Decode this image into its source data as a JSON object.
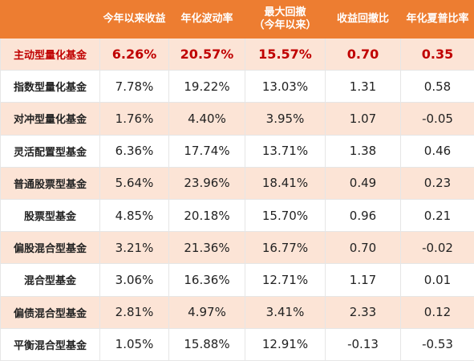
{
  "header": {
    "corner": "",
    "col1": "今年以来收益",
    "col2": "年化波动率",
    "col3_line1": "最大回撤",
    "col3_line2": "（今年以来）",
    "col4": "收益回撤比",
    "col5": "年化夏普比率"
  },
  "rows": [
    {
      "name": "主动型量化基金",
      "v1": "6.26%",
      "v2": "20.57%",
      "v3": "15.57%",
      "v4": "0.70",
      "v5": "0.35"
    },
    {
      "name": "指数型量化基金",
      "v1": "7.78%",
      "v2": "19.22%",
      "v3": "13.03%",
      "v4": "1.31",
      "v5": "0.58"
    },
    {
      "name": "对冲型量化基金",
      "v1": "1.76%",
      "v2": "4.40%",
      "v3": "3.95%",
      "v4": "1.07",
      "v5": "-0.05"
    },
    {
      "name": "灵活配置型基金",
      "v1": "6.36%",
      "v2": "17.74%",
      "v3": "13.71%",
      "v4": "1.38",
      "v5": "0.46"
    },
    {
      "name": "普通股票型基金",
      "v1": "5.64%",
      "v2": "23.96%",
      "v3": "18.41%",
      "v4": "0.49",
      "v5": "0.23"
    },
    {
      "name": "股票型基金",
      "v1": "4.85%",
      "v2": "20.18%",
      "v3": "15.70%",
      "v4": "0.96",
      "v5": "0.21"
    },
    {
      "name": "偏股混合型基金",
      "v1": "3.21%",
      "v2": "21.36%",
      "v3": "16.77%",
      "v4": "0.70",
      "v5": "-0.02"
    },
    {
      "name": "混合型基金",
      "v1": "3.06%",
      "v2": "16.36%",
      "v3": "12.71%",
      "v4": "1.17",
      "v5": "0.01"
    },
    {
      "name": "偏债混合型基金",
      "v1": "2.81%",
      "v2": "4.97%",
      "v3": "3.41%",
      "v4": "2.33",
      "v5": "0.12"
    },
    {
      "name": "平衡混合型基金",
      "v1": "1.05%",
      "v2": "15.88%",
      "v3": "12.91%",
      "v4": "-0.13",
      "v5": "-0.53"
    }
  ],
  "colors": {
    "header_bg": "#ed7d31",
    "stripe_bg": "#fce4d6",
    "highlight_text": "#c00000"
  }
}
